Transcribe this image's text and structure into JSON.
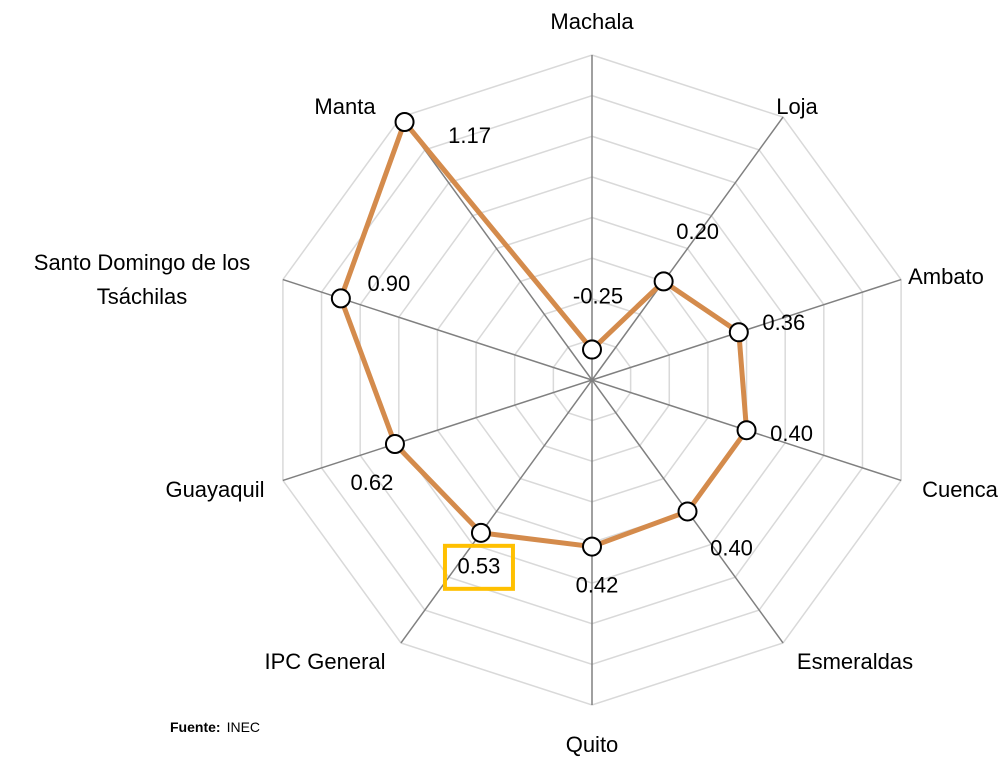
{
  "chart_data": {
    "type": "radar",
    "categories": [
      "Machala",
      "Loja",
      "Ambato",
      "Cuenca",
      "Esmeraldas",
      "Quito",
      "IPC General",
      "Guayaquil",
      "Santo Domingo de los Tsáchilas",
      "Manta"
    ],
    "series": [
      {
        "color": "#d48b4c",
        "values": [
          -0.25,
          0.2,
          0.36,
          0.4,
          0.4,
          0.42,
          0.53,
          0.62,
          0.9,
          1.17
        ],
        "value_labels": [
          "-0.25",
          "0.20",
          "0.36",
          "0.40",
          "0.40",
          "0.42",
          "0.53",
          "0.62",
          "0.90",
          "1.17"
        ]
      }
    ],
    "rlim": [
      -0.4,
      1.2
    ],
    "rticks": [
      -0.4,
      -0.2,
      0,
      0.2,
      0.4,
      0.6,
      0.8,
      1,
      1.2
    ],
    "grid": true,
    "highlight_index": 6,
    "highlight_color": "#ffc000",
    "source_label": "Fuente:",
    "source": "INEC"
  }
}
